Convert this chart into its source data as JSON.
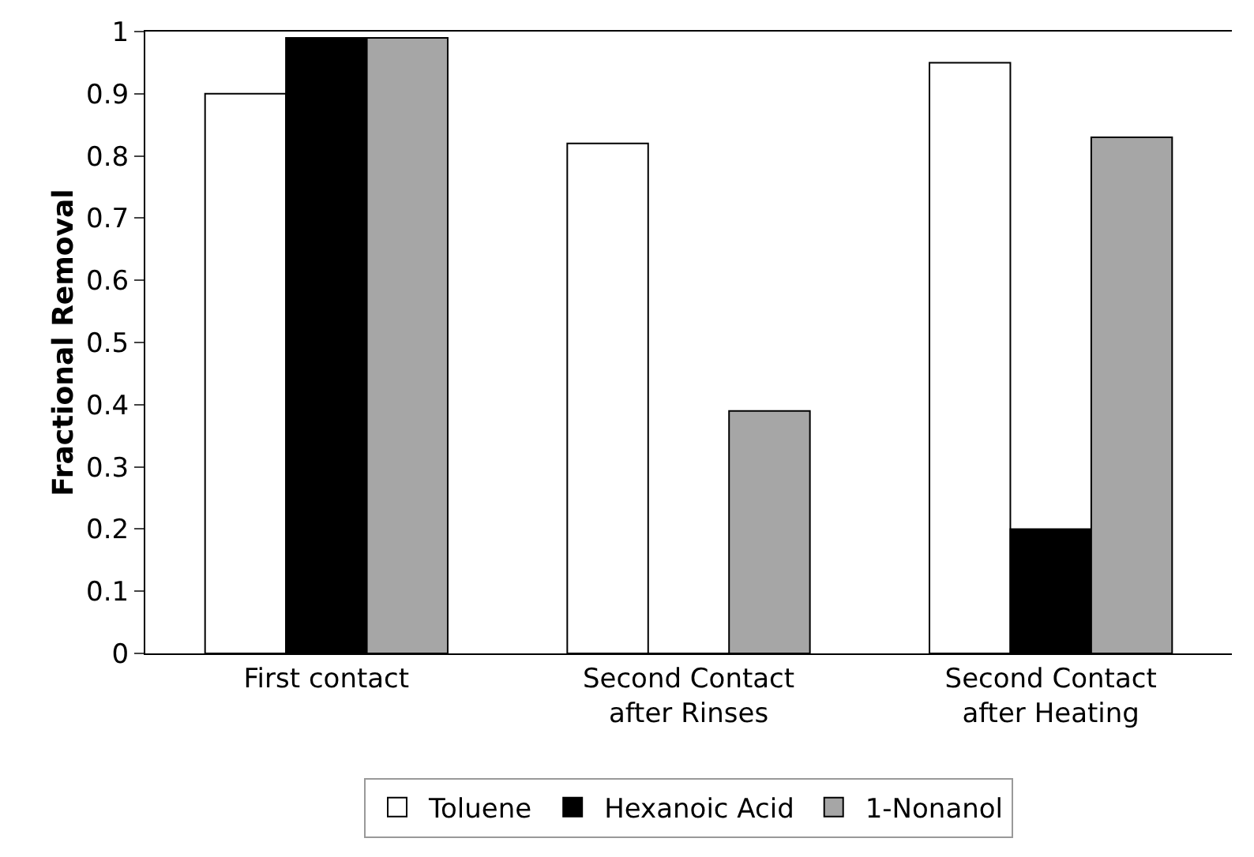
{
  "chart_data": {
    "type": "bar",
    "ylabel": "Fractional Removal",
    "categories": [
      "First contact",
      "Second Contact\nafter Rinses",
      "Second Contact\nafter Heating"
    ],
    "series": [
      {
        "name": "Toluene",
        "color": "#ffffff",
        "values": [
          0.9,
          0.82,
          0.95
        ]
      },
      {
        "name": "Hexanoic Acid",
        "color": "#000000",
        "values": [
          0.99,
          0,
          0.2
        ]
      },
      {
        "name": "1-Nonanol",
        "color": "#a6a6a6",
        "values": [
          0.99,
          0.39,
          0.83
        ]
      }
    ],
    "ylim": [
      0,
      1
    ],
    "yticks": [
      0,
      0.1,
      0.2,
      0.3,
      0.4,
      0.5,
      0.6,
      0.7,
      0.8,
      0.9,
      1
    ],
    "grid": false,
    "legend": "bottom"
  }
}
